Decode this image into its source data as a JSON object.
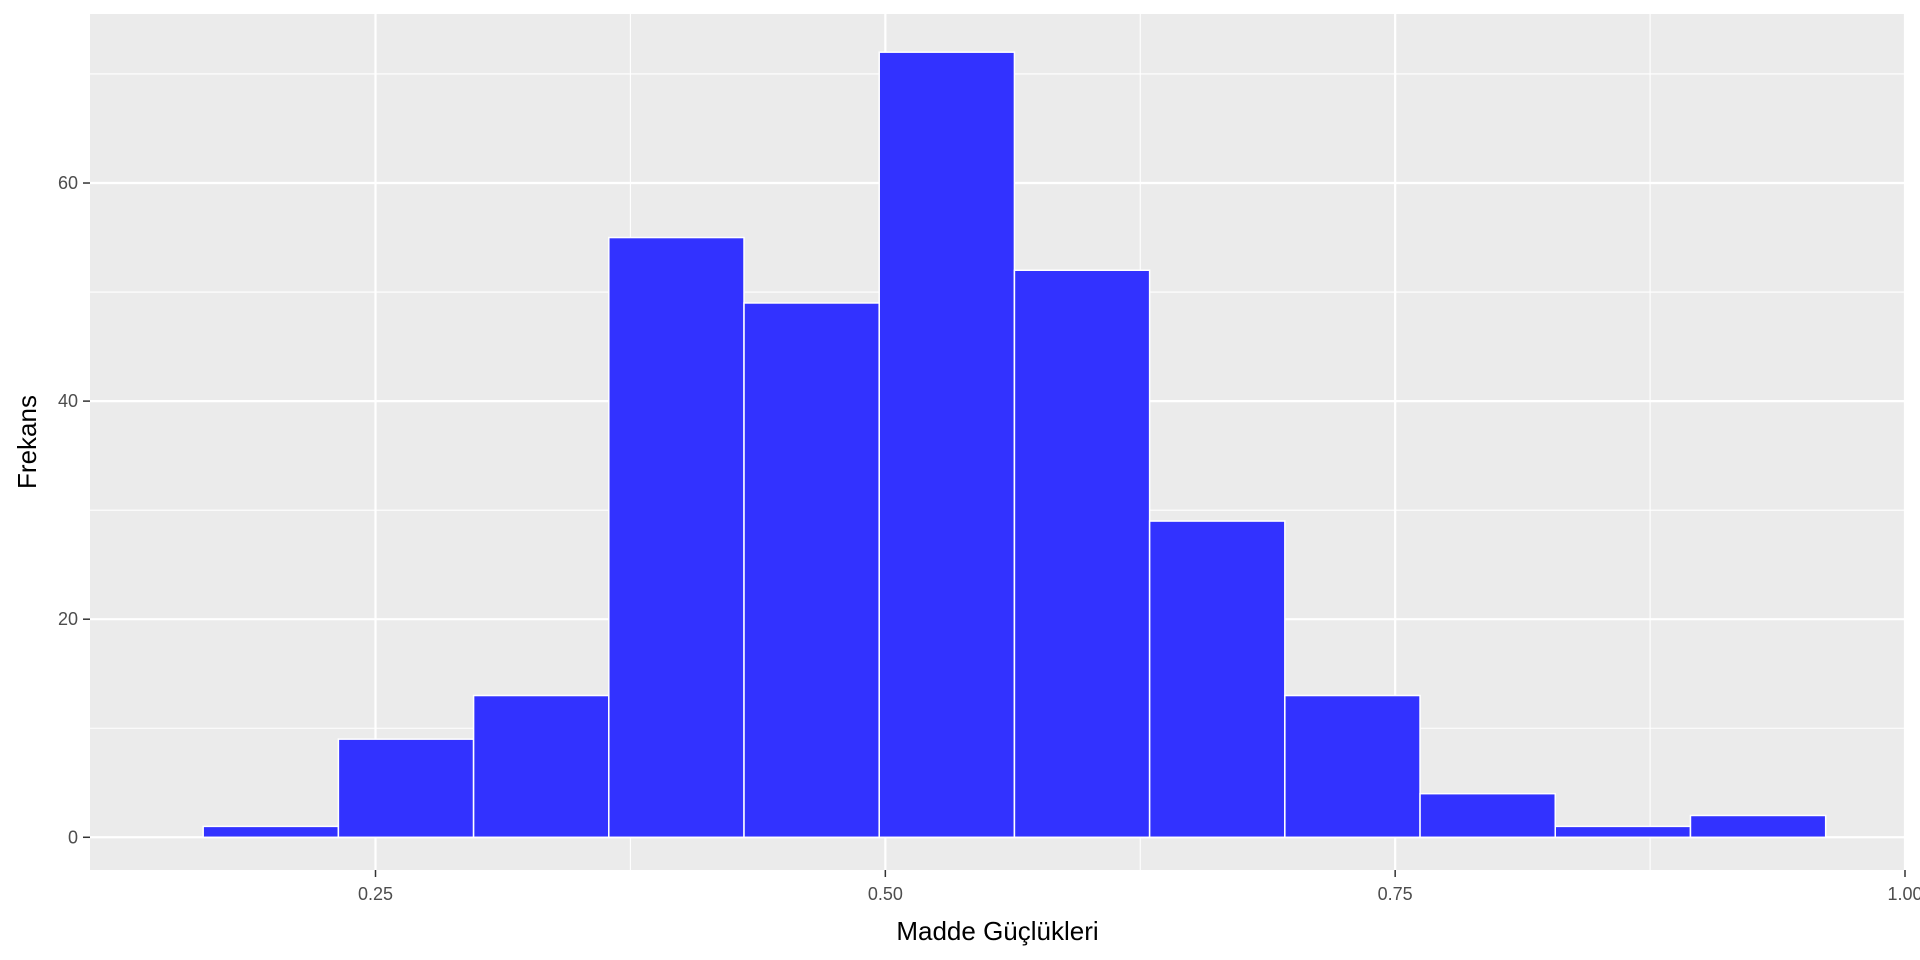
{
  "chart_data": {
    "type": "bar",
    "subtype": "histogram",
    "title": "",
    "xlabel": "Madde Güçlükleri",
    "ylabel": "Frekans",
    "xlim": [
      0.11,
      1.0
    ],
    "ylim": [
      -3,
      75.5
    ],
    "xticks": [
      0.25,
      0.5,
      0.75,
      1.0
    ],
    "xtick_labels": [
      "0.25",
      "0.50",
      "0.75",
      "1.00"
    ],
    "yticks": [
      0,
      20,
      40,
      60
    ],
    "ytick_labels": [
      "0",
      "20",
      "40",
      "60"
    ],
    "x_minor_gridlines": [
      0.375,
      0.625,
      0.875
    ],
    "y_minor_gridlines": [
      10,
      30,
      50,
      70
    ],
    "bin_edges": [
      0.1655,
      0.2318,
      0.2981,
      0.3644,
      0.4307,
      0.497,
      0.5633,
      0.6296,
      0.6959,
      0.7622,
      0.8285,
      0.8948,
      0.9611
    ],
    "values": [
      1,
      9,
      13,
      55,
      49,
      72,
      52,
      29,
      13,
      4,
      1,
      2
    ],
    "grid": true,
    "colors": {
      "panel_background": "#ebebeb",
      "grid_major": "#ffffff",
      "bar_fill": "#3232ff",
      "bar_outline": "#ffffff",
      "axis_tick": "#333333"
    }
  }
}
